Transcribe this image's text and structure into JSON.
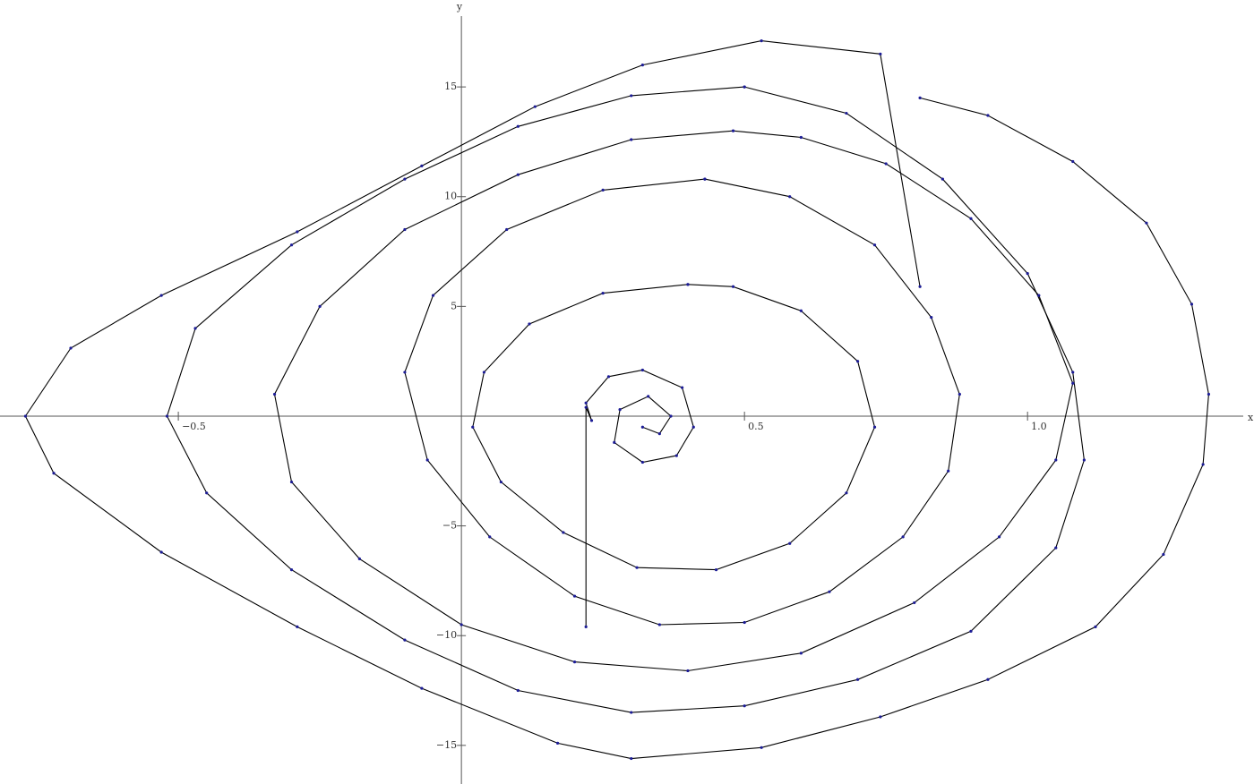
{
  "chart_data": {
    "type": "line",
    "x_label": "x",
    "y_label": "y",
    "xlim": [
      -0.815,
      1.4
    ],
    "ylim": [
      -16.76,
      18.96
    ],
    "xticks": [
      {
        "value": -0.5,
        "label": "−0.5"
      },
      0.5,
      {
        "value": 1,
        "label": "1.0"
      }
    ],
    "yticks": [
      15,
      10,
      5,
      {
        "value": -5,
        "label": "−5"
      },
      {
        "value": -10,
        "label": "−10"
      },
      {
        "value": -15,
        "label": "−15"
      }
    ],
    "line_color": "#000000",
    "marker_color": "#1c1c96",
    "segments": [
      {
        "x": [
          0.81,
          0.74,
          0.53,
          0.32,
          0.13,
          -0.07,
          -0.29,
          -0.53,
          -0.69,
          -0.77,
          -0.72,
          -0.53,
          -0.29,
          -0.07,
          0.17,
          0.3,
          0.53,
          0.74,
          0.93,
          1.12,
          1.24,
          1.31,
          1.32,
          1.29,
          1.21,
          1.08,
          0.93,
          0.81
        ],
        "y": [
          5.9,
          16.5,
          17.1,
          16.0,
          14.1,
          11.4,
          8.4,
          5.5,
          3.1,
          0,
          -2.6,
          -6.2,
          -9.6,
          -12.4,
          -14.9,
          -15.6,
          -15.1,
          -13.7,
          -12.0,
          -9.6,
          -6.3,
          -2.2,
          1.0,
          5.1,
          8.8,
          11.6,
          13.7,
          14.5
        ]
      },
      {
        "x": [
          0.5,
          0.3,
          0.1,
          -0.1,
          -0.3,
          -0.47,
          -0.52,
          -0.45,
          -0.3,
          -0.1,
          0.1,
          0.3,
          0.5,
          0.7,
          0.9,
          1.05,
          1.1,
          1.08,
          1.0,
          0.85,
          0.68,
          0.5
        ],
        "y": [
          15,
          14.6,
          13.2,
          10.8,
          7.8,
          4.0,
          0,
          -3.5,
          -7.0,
          -10.2,
          -12.5,
          -13.5,
          -13.2,
          -12,
          -9.8,
          -6,
          -2,
          2,
          6.5,
          10.8,
          13.8,
          15
        ]
      },
      {
        "x": [
          0.48,
          0.3,
          0.1,
          -0.1,
          -0.25,
          -0.33,
          -0.3,
          -0.18,
          0,
          0.2,
          0.4,
          0.6,
          0.8,
          0.95,
          1.05,
          1.08,
          1.02,
          0.9,
          0.75,
          0.6,
          0.48
        ],
        "y": [
          13,
          12.6,
          11,
          8.5,
          5,
          1,
          -3,
          -6.5,
          -9.5,
          -11.2,
          -11.6,
          -10.8,
          -8.5,
          -5.5,
          -2,
          1.5,
          5.5,
          9,
          11.5,
          12.7,
          13
        ]
      },
      {
        "x": [
          0.43,
          0.25,
          0.08,
          -0.05,
          -0.1,
          -0.06,
          0.05,
          0.2,
          0.35,
          0.5,
          0.65,
          0.78,
          0.86,
          0.88,
          0.83,
          0.73,
          0.58,
          0.43
        ],
        "y": [
          10.8,
          10.3,
          8.5,
          5.5,
          2,
          -2,
          -5.5,
          -8.2,
          -9.5,
          -9.4,
          -8,
          -5.5,
          -2.5,
          1,
          4.5,
          7.8,
          10,
          10.8
        ]
      },
      {
        "x": [
          0.4,
          0.25,
          0.12,
          0.04,
          0.02,
          0.07,
          0.18,
          0.31,
          0.45,
          0.58,
          0.68,
          0.73,
          0.7,
          0.6,
          0.48,
          0.4
        ],
        "y": [
          6.0,
          5.6,
          4.2,
          2.0,
          -0.5,
          -3,
          -5.3,
          -6.9,
          -7.0,
          -5.8,
          -3.5,
          -0.5,
          2.5,
          4.8,
          5.9,
          6.0
        ]
      },
      {
        "x": [
          0.22,
          0.22,
          0.23,
          0.22,
          0.26,
          0.32,
          0.39,
          0.41,
          0.38,
          0.32,
          0.27,
          0.28,
          0.33,
          0.37,
          0.35,
          0.32
        ],
        "y": [
          -9.6,
          0.4,
          -0.2,
          0.6,
          1.8,
          2.1,
          1.3,
          -0.5,
          -1.8,
          -2.1,
          -1.2,
          0.3,
          0.9,
          0,
          -0.8,
          -0.5
        ]
      }
    ]
  }
}
